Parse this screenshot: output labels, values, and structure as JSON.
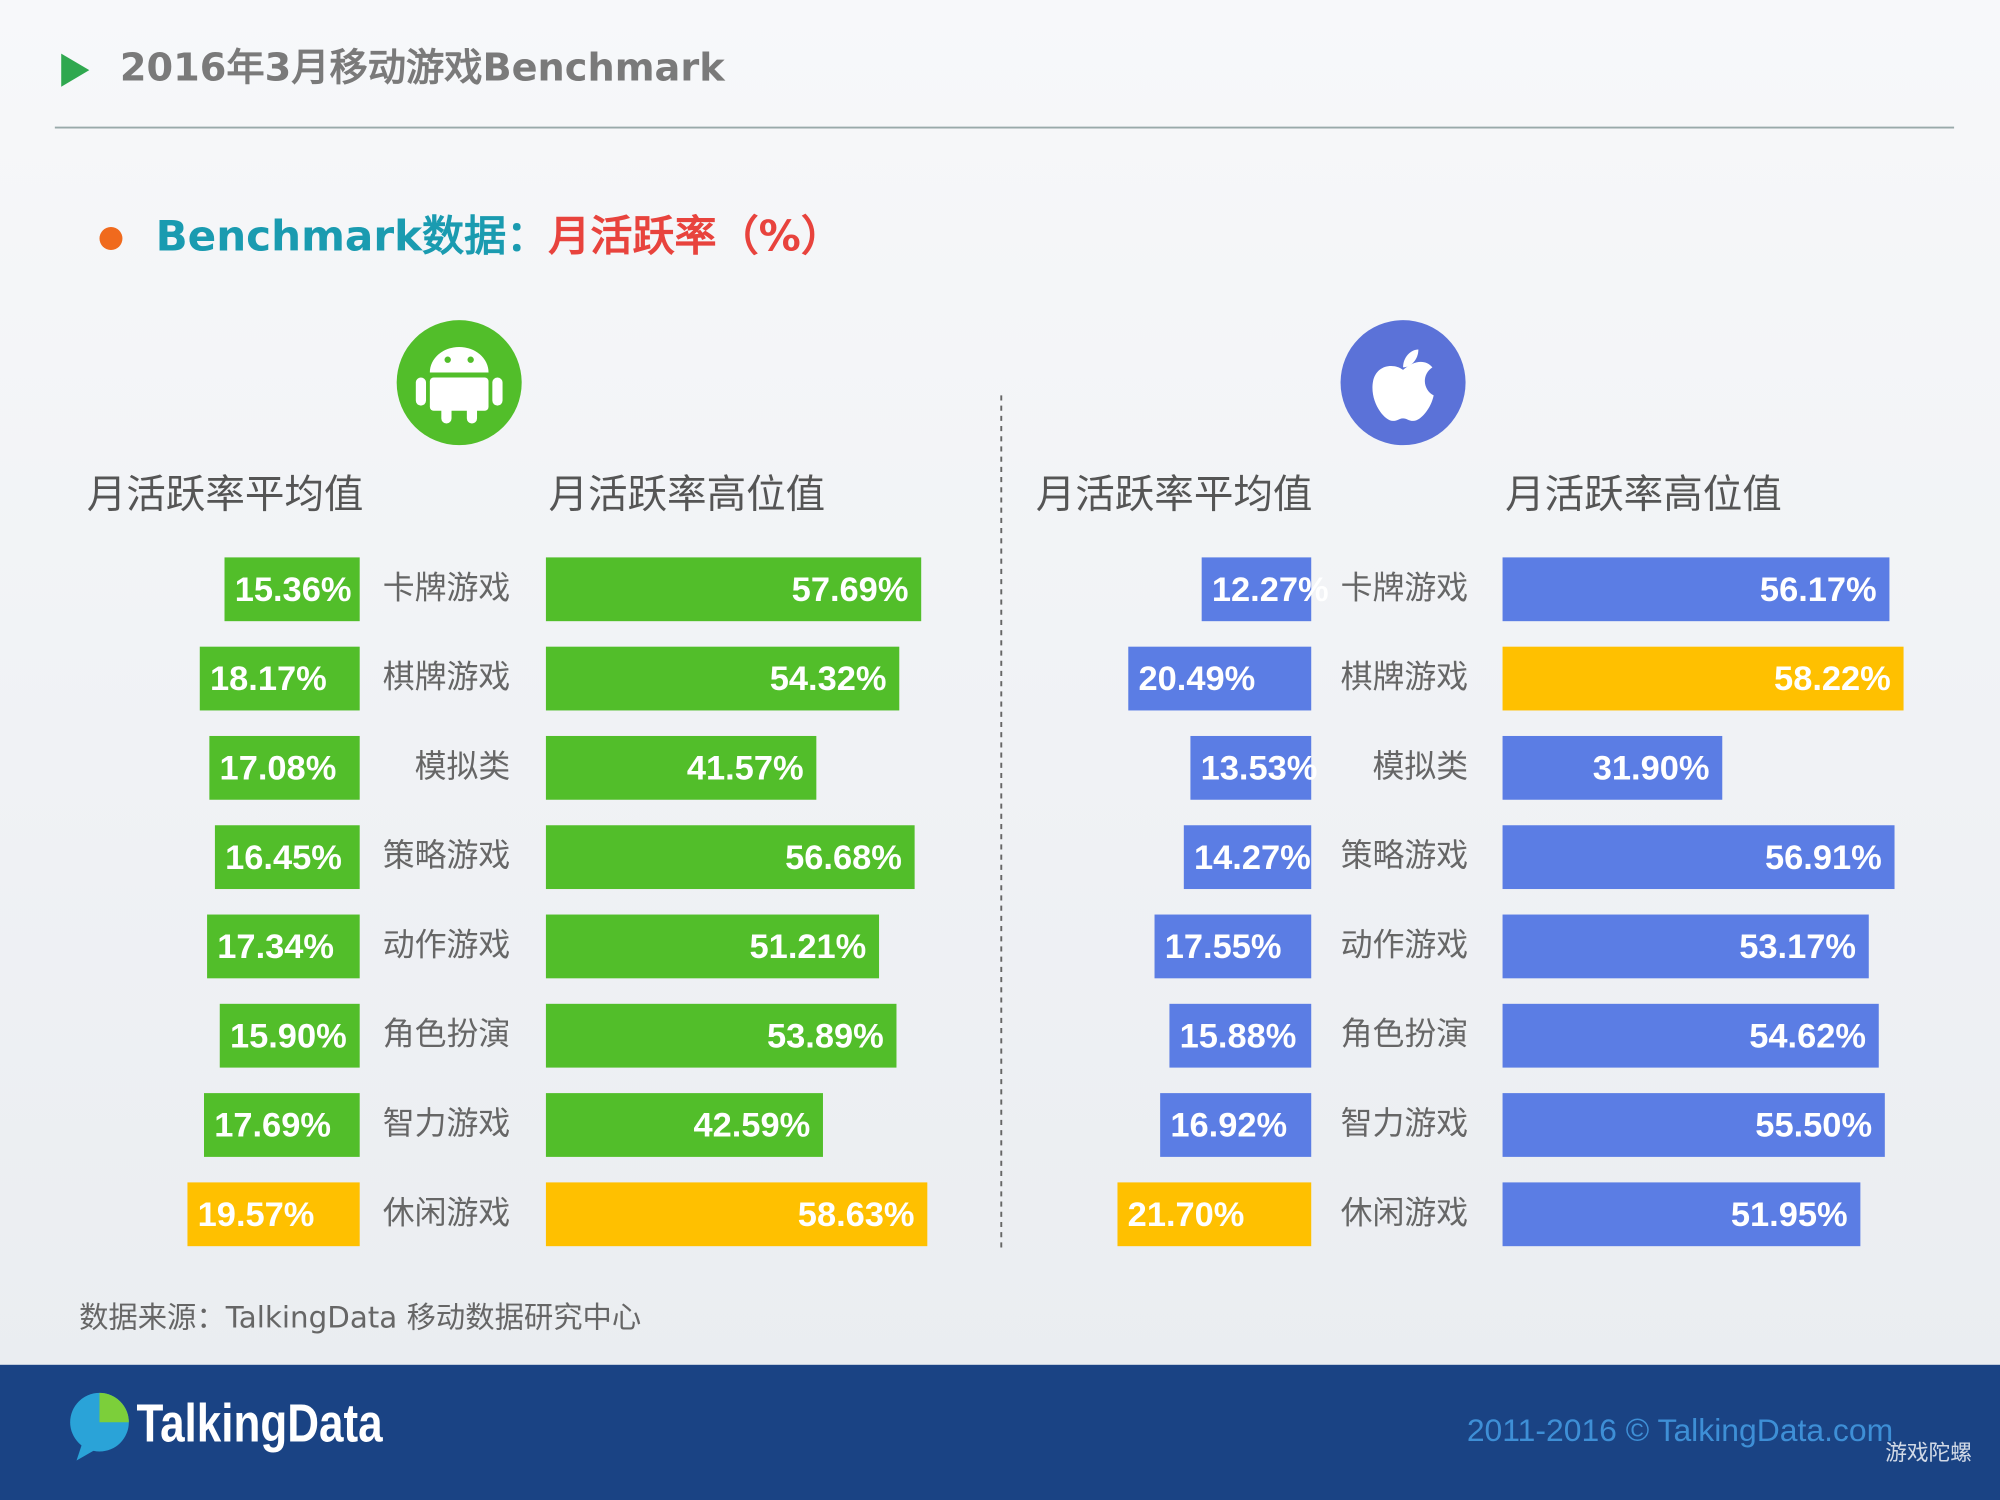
{
  "header": {
    "title": "2016年3月移动游戏Benchmark"
  },
  "subtitle": {
    "prefix": "Benchmark数据：",
    "metric": "月活跃率（%）"
  },
  "chart_data": [
    {
      "type": "bar",
      "categories": [
        "卡牌游戏",
        "棋牌游戏",
        "模拟类",
        "策略游戏",
        "动作游戏",
        "角色扮演",
        "智力游戏",
        "休闲游戏"
      ],
      "series": [
        {
          "name": "月活跃率平均值",
          "values": [
            15.36,
            18.17,
            17.08,
            16.45,
            17.34,
            15.9,
            17.69,
            19.57
          ],
          "value_labels": [
            "15.36%",
            "18.17%",
            "17.08%",
            "16.45%",
            "17.34%",
            "15.90%",
            "17.69%",
            "19.57%"
          ],
          "colors": [
            "#52be2a",
            "#52be2a",
            "#52be2a",
            "#52be2a",
            "#52be2a",
            "#52be2a",
            "#52be2a",
            "#ffc000"
          ]
        },
        {
          "name": "月活跃率高位值",
          "values": [
            57.69,
            54.32,
            41.57,
            56.68,
            51.21,
            53.89,
            42.59,
            58.63
          ],
          "value_labels": [
            "57.69%",
            "54.32%",
            "41.57%",
            "56.68%",
            "51.21%",
            "53.89%",
            "42.59%",
            "58.63%"
          ],
          "colors": [
            "#52be2a",
            "#52be2a",
            "#52be2a",
            "#52be2a",
            "#52be2a",
            "#52be2a",
            "#52be2a",
            "#ffc000"
          ]
        }
      ]
    },
    {
      "type": "bar",
      "categories": [
        "卡牌游戏",
        "棋牌游戏",
        "模拟类",
        "策略游戏",
        "动作游戏",
        "角色扮演",
        "智力游戏",
        "休闲游戏"
      ],
      "series": [
        {
          "name": "月活跃率平均值",
          "values": [
            12.27,
            20.49,
            13.53,
            14.27,
            17.55,
            15.88,
            16.92,
            21.7
          ],
          "value_labels": [
            "12.27%",
            "20.49%",
            "13.53%",
            "14.27%",
            "17.55%",
            "15.88%",
            "16.92%",
            "21.70%"
          ],
          "colors": [
            "#5b7de4",
            "#5b7de4",
            "#5b7de4",
            "#5b7de4",
            "#5b7de4",
            "#5b7de4",
            "#5b7de4",
            "#ffc000"
          ]
        },
        {
          "name": "月活跃率高位值",
          "values": [
            56.17,
            58.22,
            31.9,
            56.91,
            53.17,
            54.62,
            55.5,
            51.95
          ],
          "value_labels": [
            "56.17%",
            "58.22%",
            "31.90%",
            "56.91%",
            "53.17%",
            "54.62%",
            "55.50%",
            "51.95%"
          ],
          "colors": [
            "#5b7de4",
            "#ffc000",
            "#5b7de4",
            "#5b7de4",
            "#5b7de4",
            "#5b7de4",
            "#5b7de4",
            "#5b7de4"
          ]
        }
      ]
    }
  ],
  "source": "数据来源：TalkingData 移动数据研究中心",
  "footer": {
    "logo": "TalkingData",
    "copyright": "2011-2016 © TalkingData.com",
    "watermark": "游戏陀螺"
  }
}
